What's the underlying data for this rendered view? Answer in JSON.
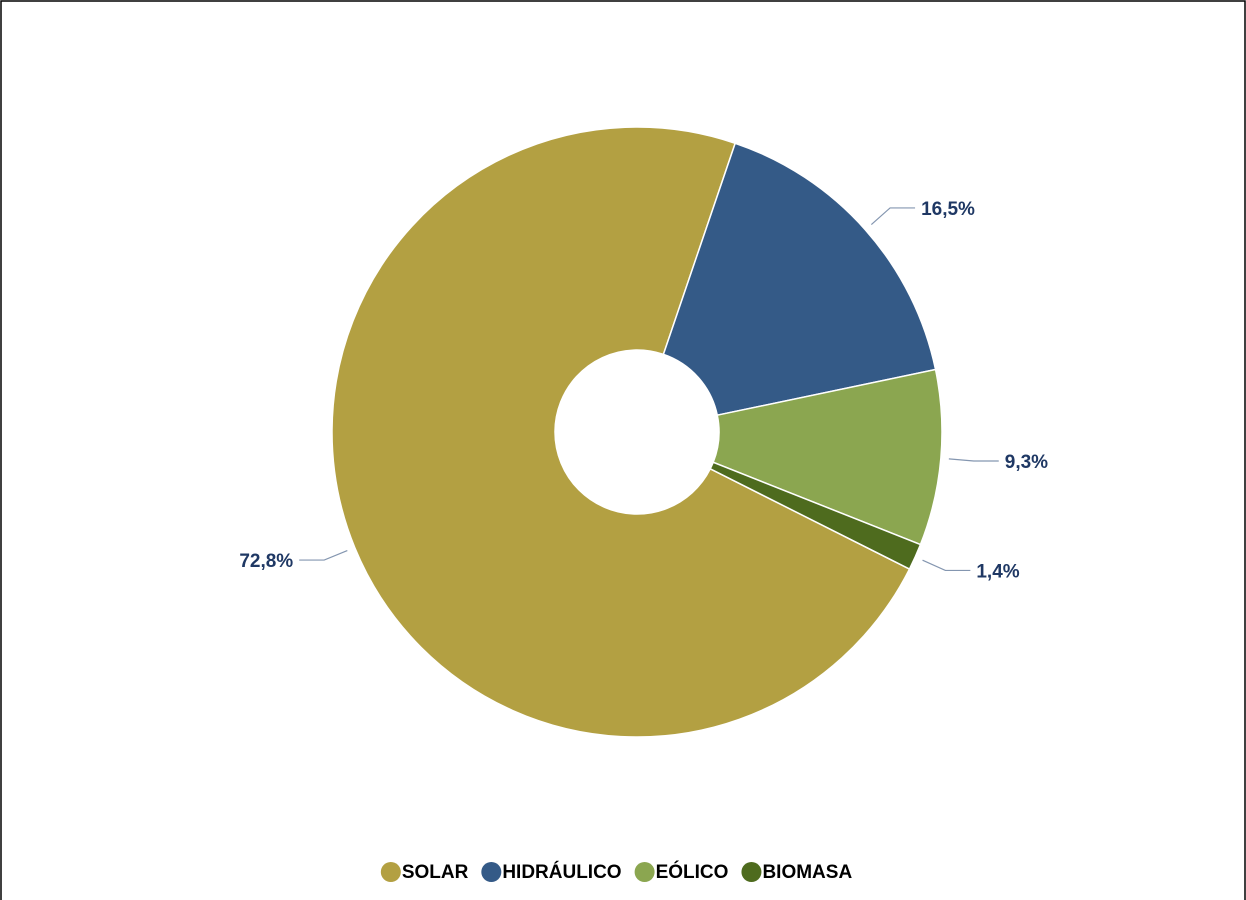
{
  "chart_data": {
    "type": "donut",
    "categories": [
      "SOLAR",
      "HIDRÁULICO",
      "EÓLICO",
      "BIOMASA"
    ],
    "values": [
      72.8,
      16.5,
      9.3,
      1.4
    ],
    "value_labels": [
      "72,8%",
      "16,5%",
      "9,3%",
      "1,4%"
    ],
    "colors": [
      "#b3a042",
      "#345a87",
      "#8ba650",
      "#4e6b1e"
    ],
    "legend": "bottom"
  }
}
